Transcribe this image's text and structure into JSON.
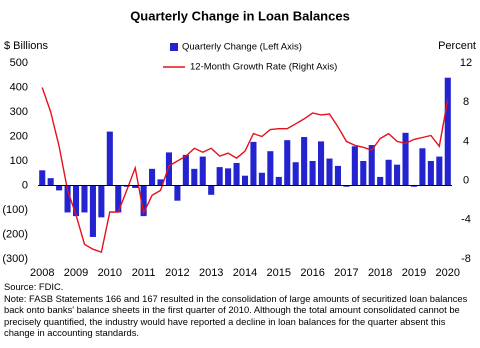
{
  "chart_data": {
    "type": "bar",
    "title": "Quarterly Change in Loan Balances",
    "y_label": "$ Billions",
    "y2_label": "Percent",
    "categories": [
      "2008",
      null,
      null,
      null,
      "2009",
      null,
      null,
      null,
      "2010",
      null,
      null,
      null,
      "2011",
      null,
      null,
      null,
      "2012",
      null,
      null,
      null,
      "2013",
      null,
      null,
      null,
      "2014",
      null,
      null,
      null,
      "2015",
      null,
      null,
      null,
      "2016",
      null,
      null,
      null,
      "2017",
      null,
      null,
      null,
      "2018",
      null,
      null,
      null,
      "2019",
      null,
      null,
      null,
      "2020"
    ],
    "series": [
      {
        "name": "Quarterly Change (Left Axis)",
        "type": "bar",
        "color": "#2323cf",
        "axis": "y",
        "values": [
          62,
          30,
          -20,
          -110,
          -125,
          -110,
          -210,
          -130,
          220,
          -110,
          -5,
          -10,
          -125,
          68,
          25,
          135,
          -62,
          125,
          68,
          118,
          -38,
          75,
          70,
          92,
          40,
          178,
          52,
          140,
          35,
          185,
          95,
          198,
          100,
          180,
          110,
          80,
          -5,
          160,
          100,
          165,
          35,
          105,
          85,
          215,
          -5,
          152,
          100,
          118,
          440
        ]
      },
      {
        "name": "12-Month Growth Rate (Right Axis)",
        "type": "line",
        "color": "#e8101a",
        "axis": "y2",
        "values": [
          9.5,
          7.0,
          3.5,
          -1.0,
          -3.5,
          -6.5,
          -7.0,
          -7.3,
          -3.2,
          -3.2,
          -1.0,
          1.3,
          -3.3,
          -1.5,
          -1.0,
          1.5,
          2.0,
          2.5,
          3.3,
          2.9,
          3.3,
          2.5,
          2.8,
          2.3,
          3.0,
          4.8,
          4.5,
          5.2,
          5.3,
          5.3,
          5.8,
          6.3,
          6.9,
          6.7,
          6.8,
          5.5,
          4.0,
          3.6,
          3.4,
          3.1,
          4.3,
          4.8,
          4.0,
          3.8,
          4.2,
          4.4,
          4.6,
          3.5,
          8.3
        ]
      }
    ],
    "ylim": [
      -300,
      500
    ],
    "yticks": [
      500,
      400,
      300,
      200,
      100,
      0,
      {
        "value": -100,
        "label": "(100)"
      },
      {
        "value": -200,
        "label": "(200)"
      },
      {
        "value": -300,
        "label": "(300)"
      }
    ],
    "y2lim": [
      -8,
      12
    ],
    "y2ticks": [
      12,
      8,
      4,
      0,
      -4,
      -8
    ],
    "grid": false,
    "source": "Source:  FDIC.",
    "note": "Note: FASB Statements 166 and 167 resulted in the consolidation of large amounts of securitized loan balances back onto banks' balance sheets in the first quarter of 2010.  Although the total amount consolidated cannot be precisely quantified, the industry would have reported a decline in loan balances for the quarter absent this change in accounting standards."
  }
}
